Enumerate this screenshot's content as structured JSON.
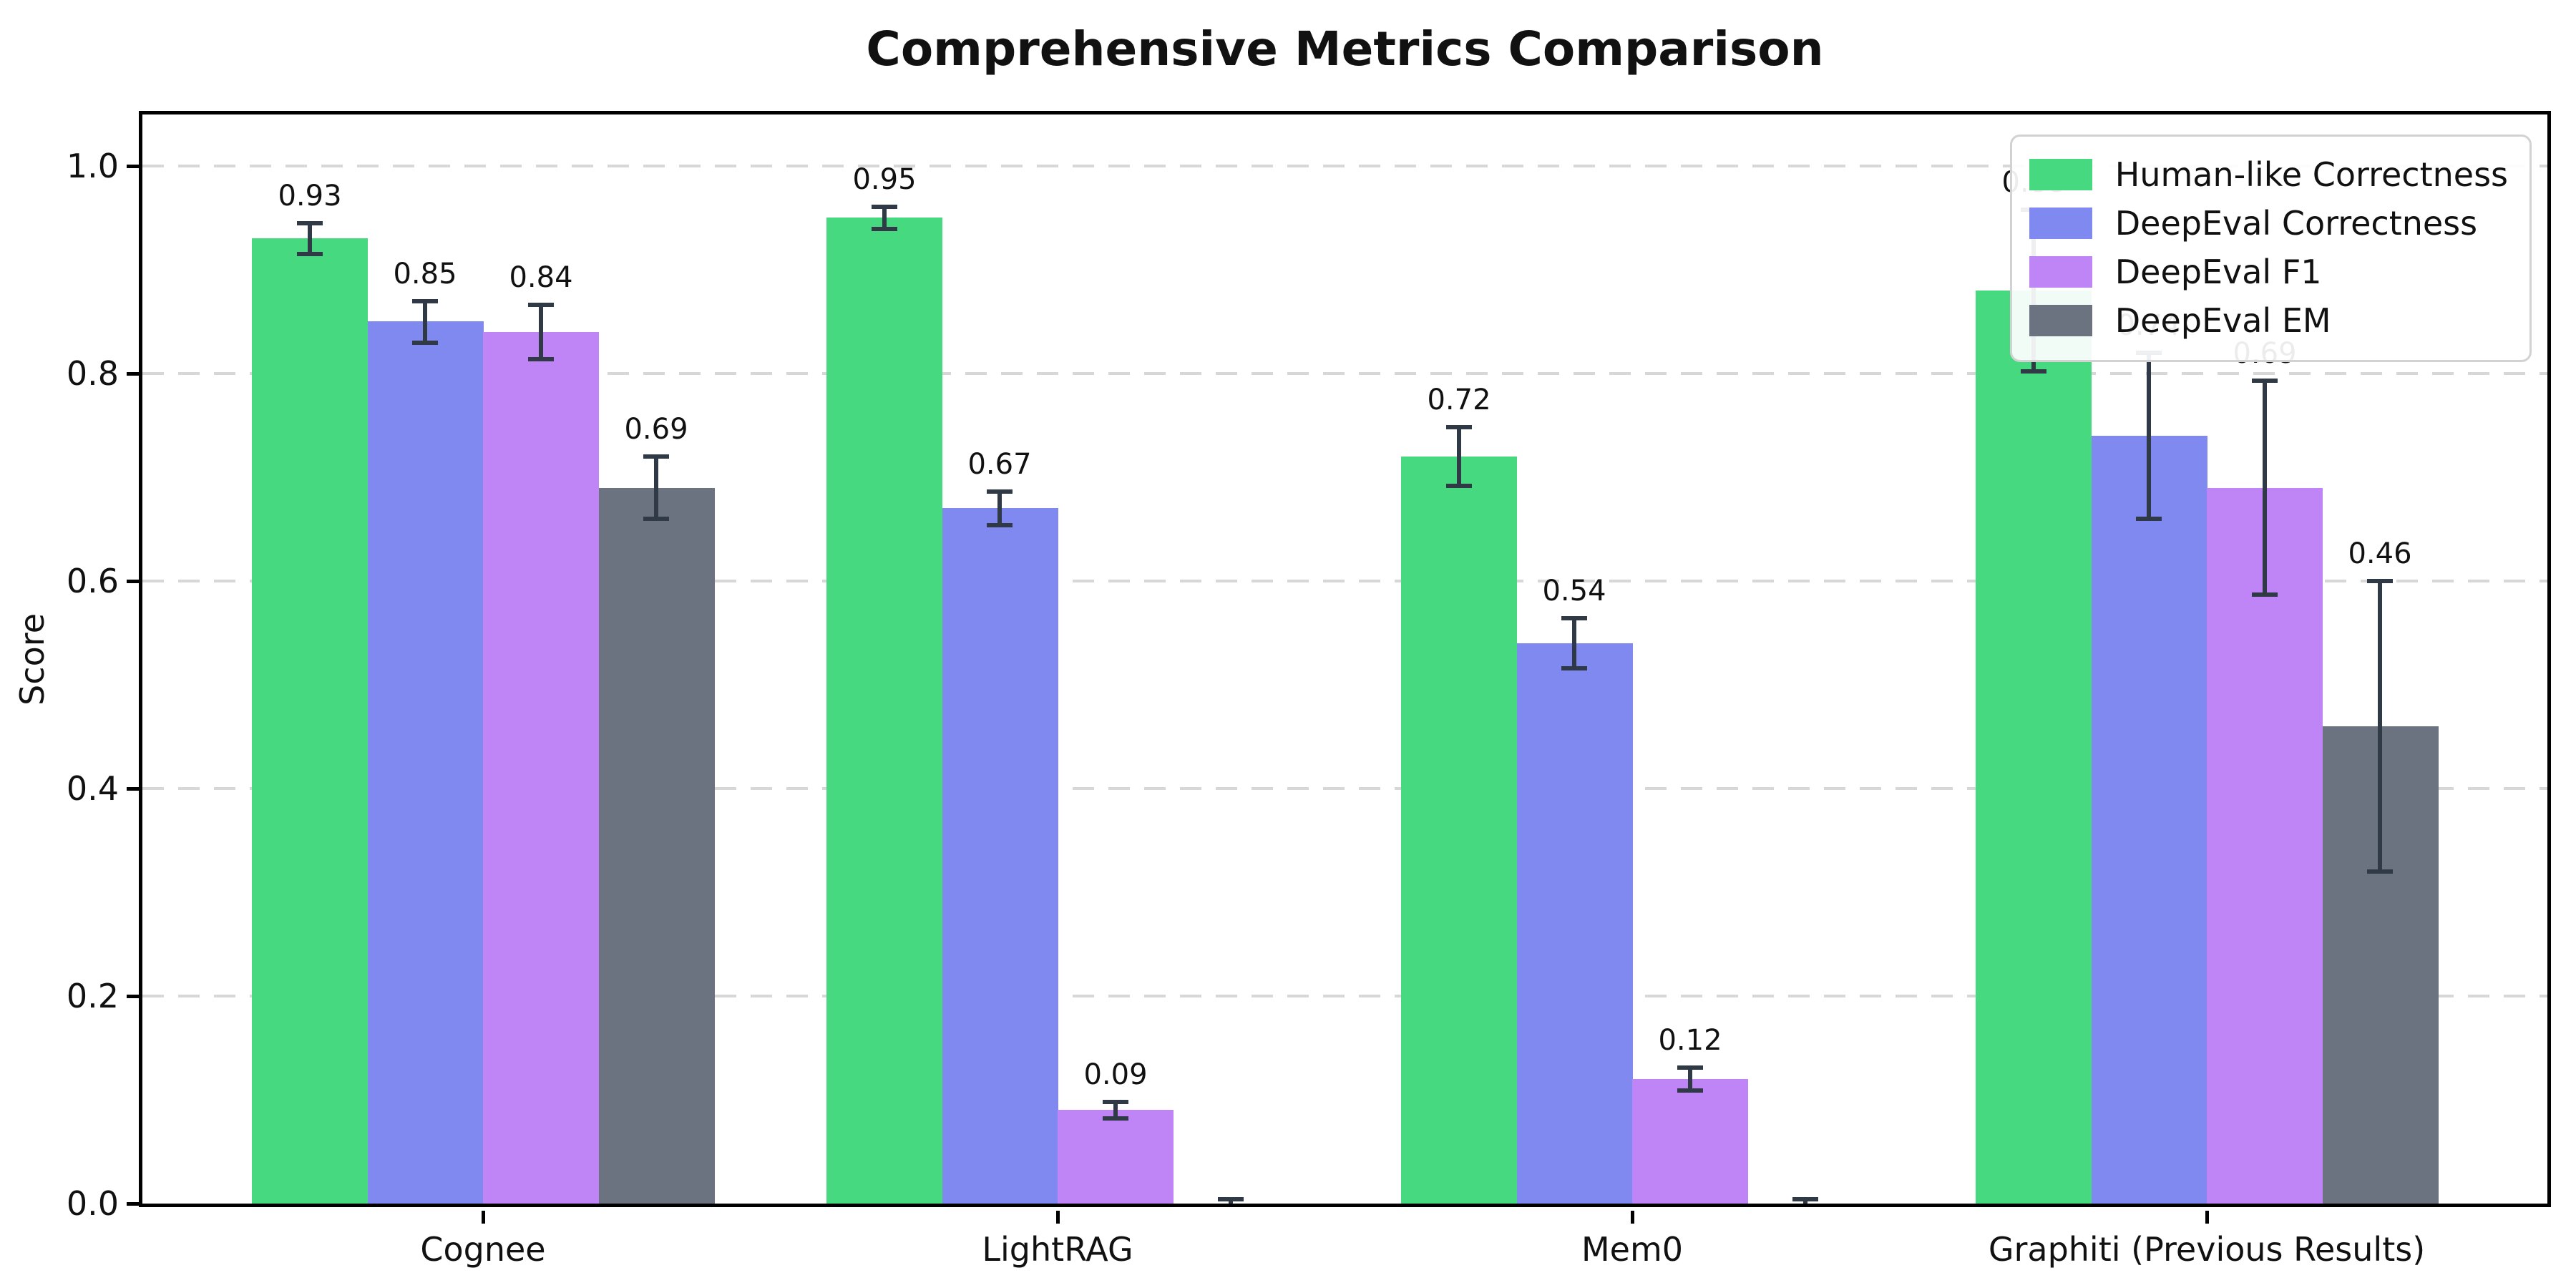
{
  "chart_data": {
    "type": "bar",
    "title": "Comprehensive Metrics Comparison",
    "ylabel": "Score",
    "xlabel": "",
    "categories": [
      "Cognee",
      "LightRAG",
      "Mem0",
      "Graphiti (Previous Results)"
    ],
    "series": [
      {
        "name": "Human-like Correctness",
        "color": "#47d97f",
        "values": [
          0.93,
          0.95,
          0.72,
          0.88
        ],
        "errors": [
          0.015,
          0.011,
          0.028,
          0.078
        ],
        "labels": [
          "0.93",
          "0.95",
          "0.72",
          "0.88"
        ]
      },
      {
        "name": "DeepEval Correctness",
        "color": "#7f89ef",
        "values": [
          0.85,
          0.67,
          0.54,
          0.74
        ],
        "errors": [
          0.02,
          0.016,
          0.024,
          0.08
        ],
        "labels": [
          "0.85",
          "0.67",
          "0.54",
          "0.74"
        ]
      },
      {
        "name": "DeepEval F1",
        "color": "#bf85f7",
        "values": [
          0.84,
          0.09,
          0.12,
          0.69
        ],
        "errors": [
          0.026,
          0.008,
          0.011,
          0.103
        ],
        "labels": [
          "0.84",
          "0.09",
          "0.12",
          "0.69"
        ]
      },
      {
        "name": "DeepEval EM",
        "color": "#6b7280",
        "values": [
          0.69,
          0.0,
          0.0,
          0.46
        ],
        "errors": [
          0.03,
          0.004,
          0.004,
          0.14
        ],
        "labels": [
          "0.69",
          null,
          null,
          "0.46"
        ]
      }
    ],
    "ylim": [
      0,
      1.05
    ],
    "yticks": [
      0.0,
      0.2,
      0.4,
      0.6,
      0.8,
      1.0
    ],
    "ytick_labels": [
      "0.0",
      "0.2",
      "0.4",
      "0.6",
      "0.8",
      "1.0"
    ],
    "grid": "horizontal dashed",
    "gridline_color": "#d7d7d7",
    "legend_position": "upper right",
    "error_bar_color": "#2f3a46",
    "background_color": "#ffffff"
  }
}
